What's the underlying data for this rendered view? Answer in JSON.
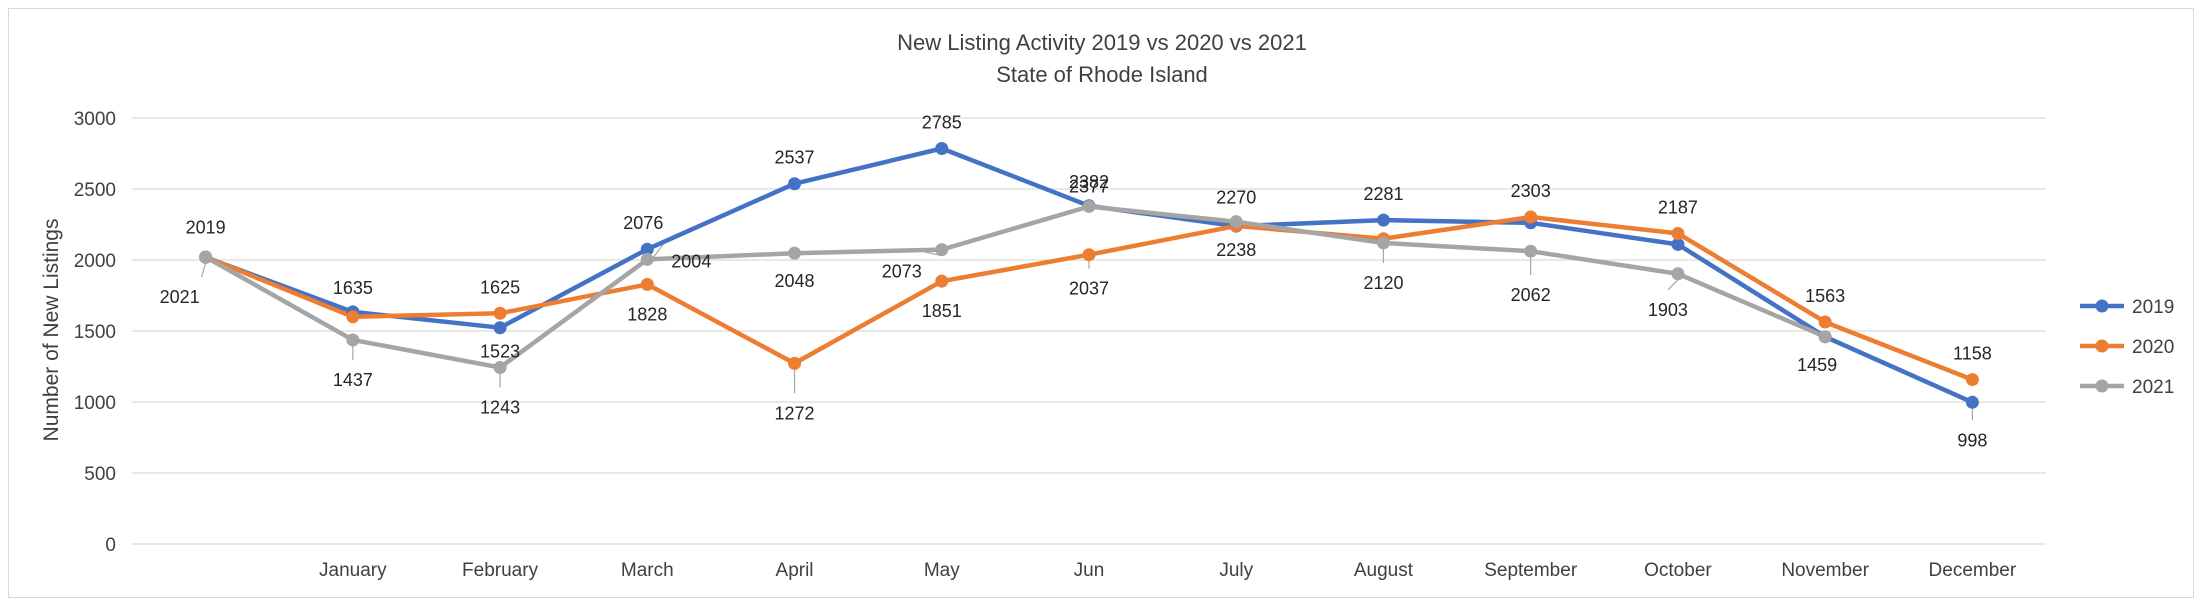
{
  "chart_data": {
    "type": "line",
    "title": "New Listing Activity 2019 vs 2020 vs 2021",
    "subtitle": "State of Rhode Island",
    "xlabel": "",
    "ylabel": "Number of New Listings",
    "ylim": [
      0,
      3000
    ],
    "yticks": [
      "0",
      "500",
      "1000",
      "1500",
      "2000",
      "2500",
      "3000"
    ],
    "grid": true,
    "legend_position": "right",
    "categories": [
      "",
      "January",
      "February",
      "March",
      "April",
      "May",
      "Jun",
      "July",
      "August",
      "September",
      "October",
      "November",
      "December"
    ],
    "series": [
      {
        "name": "2019",
        "color": "#4472c4",
        "values": [
          2019,
          1635,
          1523,
          2076,
          2537,
          2785,
          2382,
          2238,
          2281,
          2262,
          2110,
          1459,
          998
        ],
        "labels": [
          "2019",
          "1635",
          "1523",
          "2076",
          "2537",
          "2785",
          "2382",
          "2238",
          "2281",
          "",
          "",
          "1459",
          "998"
        ]
      },
      {
        "name": "2020",
        "color": "#ed7d31",
        "values": [
          2021,
          1600,
          1625,
          1828,
          1272,
          1851,
          2037,
          2240,
          2150,
          2303,
          2187,
          1563,
          1158
        ],
        "labels": [
          "",
          "",
          "1625",
          "1828",
          "1272",
          "1851",
          "2037",
          "",
          "",
          "2303",
          "2187",
          "1563",
          "1158"
        ]
      },
      {
        "name": "2021",
        "color": "#a5a5a5",
        "values": [
          2021,
          1437,
          1243,
          2004,
          2048,
          2073,
          2377,
          2270,
          2120,
          2062,
          1903,
          1459,
          null
        ],
        "labels": [
          "2021",
          "1437",
          "1243",
          "2004",
          "2048",
          "2073",
          "2377",
          "2270",
          "2120",
          "2062",
          "1903",
          "",
          ""
        ]
      }
    ]
  }
}
